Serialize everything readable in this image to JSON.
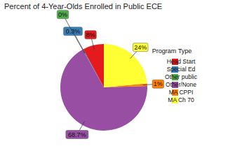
{
  "chart_data": {
    "type": "pie",
    "title": "Percent of 4-Year-Olds Enrolled in Public ECE",
    "legend_title": "Program Type",
    "categories": [
      "Head Start",
      "Special Ed",
      "Other public",
      "Other/None",
      "MA CPPI",
      "MA Ch 70"
    ],
    "values": [
      8,
      0.3,
      0,
      68.7,
      1,
      24
    ],
    "value_labels": [
      "8%",
      "0.3%",
      "0%",
      "68.7%",
      "1%",
      "24%"
    ],
    "colors": [
      "#e41a1c",
      "#377eb8",
      "#4daf4a",
      "#984ea3",
      "#ff7f00",
      "#ffff33"
    ],
    "data_labels": true,
    "legend": "right"
  }
}
